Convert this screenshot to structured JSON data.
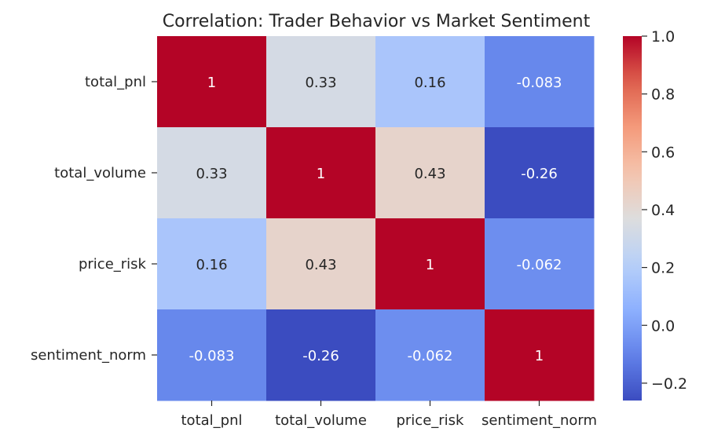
{
  "chart_data": {
    "type": "heatmap",
    "title": "Correlation: Trader Behavior vs Market Sentiment",
    "row_labels": [
      "total_pnl",
      "total_volume",
      "price_risk",
      "sentiment_norm"
    ],
    "col_labels": [
      "total_pnl",
      "total_volume",
      "price_risk",
      "sentiment_norm"
    ],
    "values": [
      [
        1,
        0.33,
        0.16,
        -0.083
      ],
      [
        0.33,
        1,
        0.43,
        -0.26
      ],
      [
        0.16,
        0.43,
        1,
        -0.062
      ],
      [
        -0.083,
        -0.26,
        -0.062,
        1
      ]
    ],
    "cell_labels": [
      [
        "1",
        "0.33",
        "0.16",
        "-0.083"
      ],
      [
        "0.33",
        "1",
        "0.43",
        "-0.26"
      ],
      [
        "0.16",
        "0.43",
        "1",
        "-0.062"
      ],
      [
        "-0.083",
        "-0.26",
        "-0.062",
        "1"
      ]
    ],
    "colormap": "coolwarm",
    "colorbar": {
      "range": [
        -0.26,
        1.0
      ],
      "ticks": [
        1.0,
        0.8,
        0.6,
        0.4,
        0.2,
        0.0,
        -0.2
      ],
      "tick_labels": [
        "1.0",
        "0.8",
        "0.6",
        "0.4",
        "0.2",
        "0.0",
        "−0.2"
      ]
    }
  }
}
